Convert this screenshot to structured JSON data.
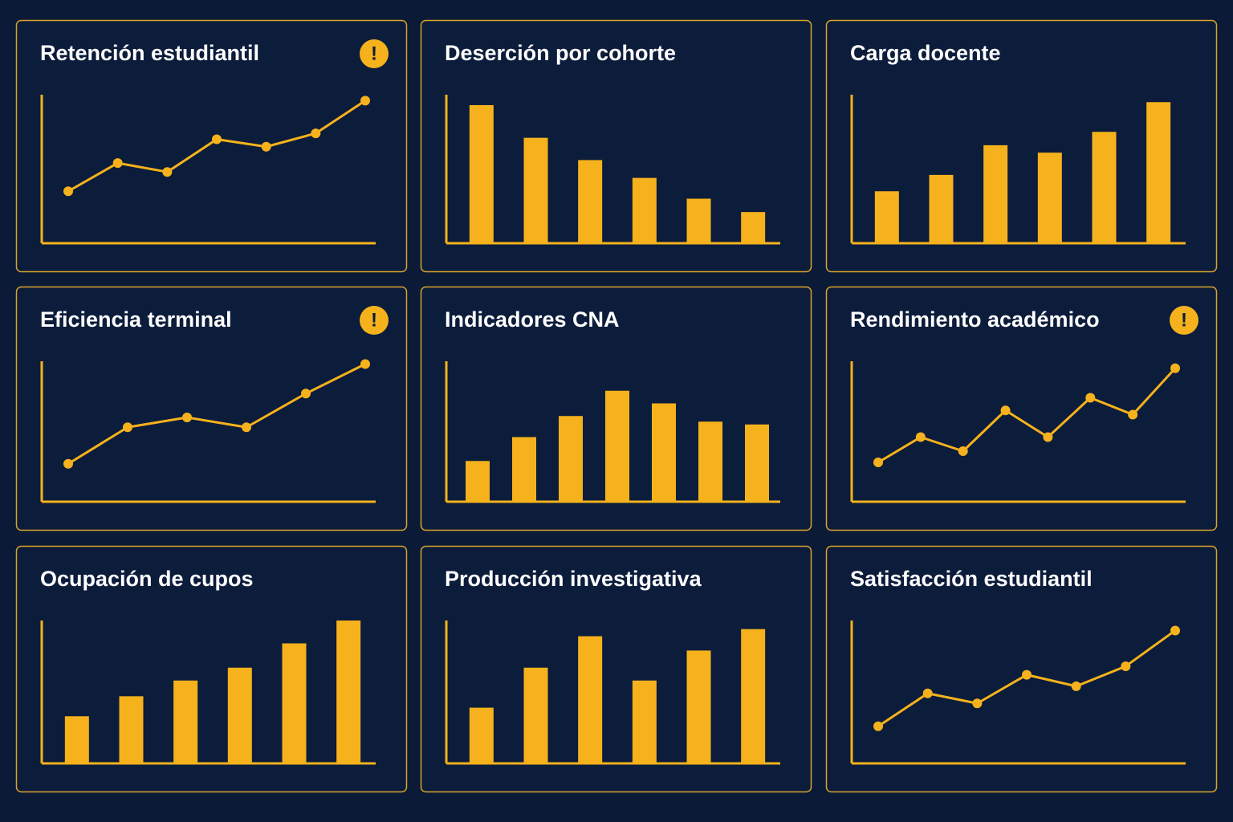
{
  "chart_data": [
    {
      "type": "line",
      "title": "Retención estudiantil",
      "alert": "!",
      "values": [
        35,
        54,
        48,
        70,
        65,
        74,
        96
      ],
      "color": "#f5b21c",
      "ylim": [
        0,
        100
      ]
    },
    {
      "type": "bar",
      "title": "Deserción por cohorte",
      "values": [
        93,
        71,
        56,
        44,
        30,
        21
      ],
      "color": "#f5b21c",
      "ylim": [
        0,
        100
      ]
    },
    {
      "type": "bar",
      "title": "Carga docente",
      "values": [
        35,
        46,
        66,
        61,
        75,
        95
      ],
      "color": "#f5b21c",
      "ylim": [
        0,
        100
      ]
    },
    {
      "type": "line",
      "title": "Eficiencia terminal",
      "alert": "!",
      "values": [
        27,
        53,
        60,
        53,
        77,
        98
      ],
      "color": "#f5b21c",
      "ylim": [
        0,
        100
      ]
    },
    {
      "type": "bar",
      "title": "Indicadores CNA",
      "values": [
        29,
        46,
        61,
        79,
        70,
        57,
        55
      ],
      "color": "#f5b21c",
      "ylim": [
        0,
        100
      ]
    },
    {
      "type": "line",
      "title": "Rendimiento académico",
      "alert": "!",
      "values": [
        28,
        46,
        36,
        65,
        46,
        74,
        62,
        95
      ],
      "color": "#f5b21c",
      "ylim": [
        0,
        100
      ]
    },
    {
      "type": "bar",
      "title": "Ocupación de cupos",
      "values": [
        33,
        47,
        58,
        67,
        84,
        100
      ],
      "color": "#f5b21c",
      "ylim": [
        0,
        100
      ]
    },
    {
      "type": "bar",
      "title": "Producción investigativa",
      "values": [
        39,
        67,
        89,
        58,
        79,
        94
      ],
      "color": "#f5b21c",
      "ylim": [
        0,
        100
      ]
    },
    {
      "type": "line",
      "title": "Satisfacción estudiantil",
      "values": [
        26,
        49,
        42,
        62,
        54,
        68,
        93
      ],
      "color": "#f5b21c",
      "ylim": [
        0,
        100
      ]
    }
  ]
}
